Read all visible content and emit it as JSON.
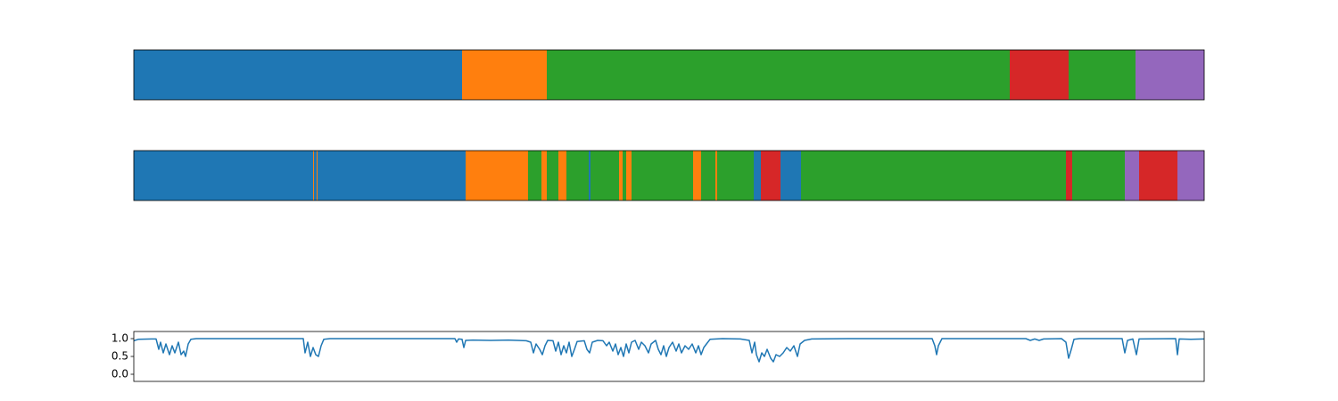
{
  "chart_data": [
    {
      "type": "segments",
      "xlim": [
        0,
        1200
      ],
      "boundaries": [
        0,
        368,
        463,
        982,
        1048,
        1123,
        1200
      ],
      "colors": [
        "#1f77b4",
        "#ff7f0e",
        "#2ca02c",
        "#d62728",
        "#2ca02c",
        "#9467bd"
      ]
    },
    {
      "type": "segments",
      "xlim": [
        0,
        1200
      ],
      "boundaries": [
        0,
        201,
        202,
        205,
        206,
        372,
        442,
        457,
        463,
        476,
        485,
        510,
        512,
        544,
        548,
        552,
        558,
        627,
        636,
        652,
        654,
        695,
        703,
        725,
        748,
        1045,
        1052,
        1111,
        1127,
        1170,
        1200
      ],
      "colors": [
        "#1f77b4",
        "#ff7f0e",
        "#1f77b4",
        "#ff7f0e",
        "#1f77b4",
        "#ff7f0e",
        "#2ca02c",
        "#ff7f0e",
        "#2ca02c",
        "#ff7f0e",
        "#2ca02c",
        "#1f77b4",
        "#2ca02c",
        "#ff7f0e",
        "#2ca02c",
        "#ff7f0e",
        "#2ca02c",
        "#ff7f0e",
        "#2ca02c",
        "#ff7f0e",
        "#2ca02c",
        "#1f77b4",
        "#d62728",
        "#1f77b4",
        "#2ca02c",
        "#d62728",
        "#2ca02c",
        "#9467bd",
        "#d62728",
        "#9467bd"
      ]
    },
    {
      "type": "line",
      "xlim": [
        0,
        1200
      ],
      "ylim": [
        -0.2,
        1.2
      ],
      "color": "#1f77b4",
      "yticks": [
        {
          "value": 0,
          "label": "0.0"
        },
        0.5,
        {
          "value": 1,
          "label": "1.0"
        }
      ],
      "x": [
        0,
        5,
        20,
        25,
        28,
        30,
        33,
        36,
        40,
        43,
        46,
        50,
        53,
        56,
        58,
        61,
        64,
        70,
        190,
        192,
        195,
        198,
        201,
        204,
        207,
        210,
        213,
        220,
        360,
        362,
        364,
        368,
        370,
        372,
        380,
        400,
        420,
        440,
        445,
        448,
        451,
        455,
        458,
        461,
        464,
        470,
        473,
        476,
        479,
        482,
        485,
        488,
        491,
        494,
        497,
        505,
        508,
        511,
        514,
        520,
        526,
        530,
        533,
        537,
        540,
        543,
        546,
        549,
        552,
        555,
        558,
        562,
        566,
        569,
        573,
        577,
        580,
        585,
        588,
        591,
        594,
        597,
        600,
        604,
        608,
        611,
        614,
        618,
        622,
        626,
        630,
        633,
        636,
        639,
        642,
        646,
        660,
        680,
        690,
        693,
        696,
        698,
        701,
        704,
        707,
        710,
        714,
        717,
        720,
        724,
        728,
        732,
        736,
        740,
        744,
        747,
        752,
        760,
        800,
        895,
        898,
        900,
        902,
        906,
        1000,
        1005,
        1010,
        1015,
        1020,
        1040,
        1045,
        1048,
        1051,
        1054,
        1060,
        1108,
        1111,
        1114,
        1120,
        1124,
        1127,
        1168,
        1170,
        1172,
        1185,
        1200
      ],
      "values": [
        0.94,
        0.98,
        0.99,
        0.99,
        0.7,
        0.9,
        0.6,
        0.85,
        0.55,
        0.8,
        0.6,
        0.9,
        0.55,
        0.65,
        0.5,
        0.85,
        0.98,
        1.0,
        1.0,
        0.6,
        0.9,
        0.5,
        0.75,
        0.55,
        0.5,
        0.8,
        0.98,
        1.0,
        1.0,
        0.9,
        0.99,
        0.98,
        0.75,
        0.95,
        0.96,
        0.95,
        0.96,
        0.94,
        0.9,
        0.6,
        0.85,
        0.7,
        0.55,
        0.8,
        0.95,
        0.94,
        0.65,
        0.9,
        0.55,
        0.8,
        0.6,
        0.9,
        0.5,
        0.7,
        0.92,
        0.94,
        0.7,
        0.6,
        0.9,
        0.95,
        0.94,
        0.8,
        0.9,
        0.65,
        0.85,
        0.55,
        0.75,
        0.5,
        0.85,
        0.6,
        0.9,
        0.95,
        0.7,
        0.9,
        0.8,
        0.6,
        0.85,
        0.95,
        0.7,
        0.55,
        0.8,
        0.5,
        0.75,
        0.9,
        0.65,
        0.85,
        0.6,
        0.8,
        0.7,
        0.85,
        0.6,
        0.8,
        0.55,
        0.75,
        0.85,
        0.98,
        1.0,
        0.99,
        0.95,
        0.6,
        0.9,
        0.55,
        0.35,
        0.6,
        0.5,
        0.7,
        0.45,
        0.35,
        0.55,
        0.5,
        0.6,
        0.75,
        0.65,
        0.8,
        0.5,
        0.85,
        0.95,
        0.99,
        1.0,
        1.0,
        0.8,
        0.55,
        0.8,
        1.0,
        1.0,
        0.95,
        0.99,
        0.95,
        0.99,
        1.0,
        0.9,
        0.45,
        0.7,
        0.98,
        1.0,
        1.0,
        0.6,
        0.95,
        0.99,
        0.55,
        0.99,
        1.0,
        0.55,
        0.99,
        0.98,
        0.99
      ]
    }
  ]
}
